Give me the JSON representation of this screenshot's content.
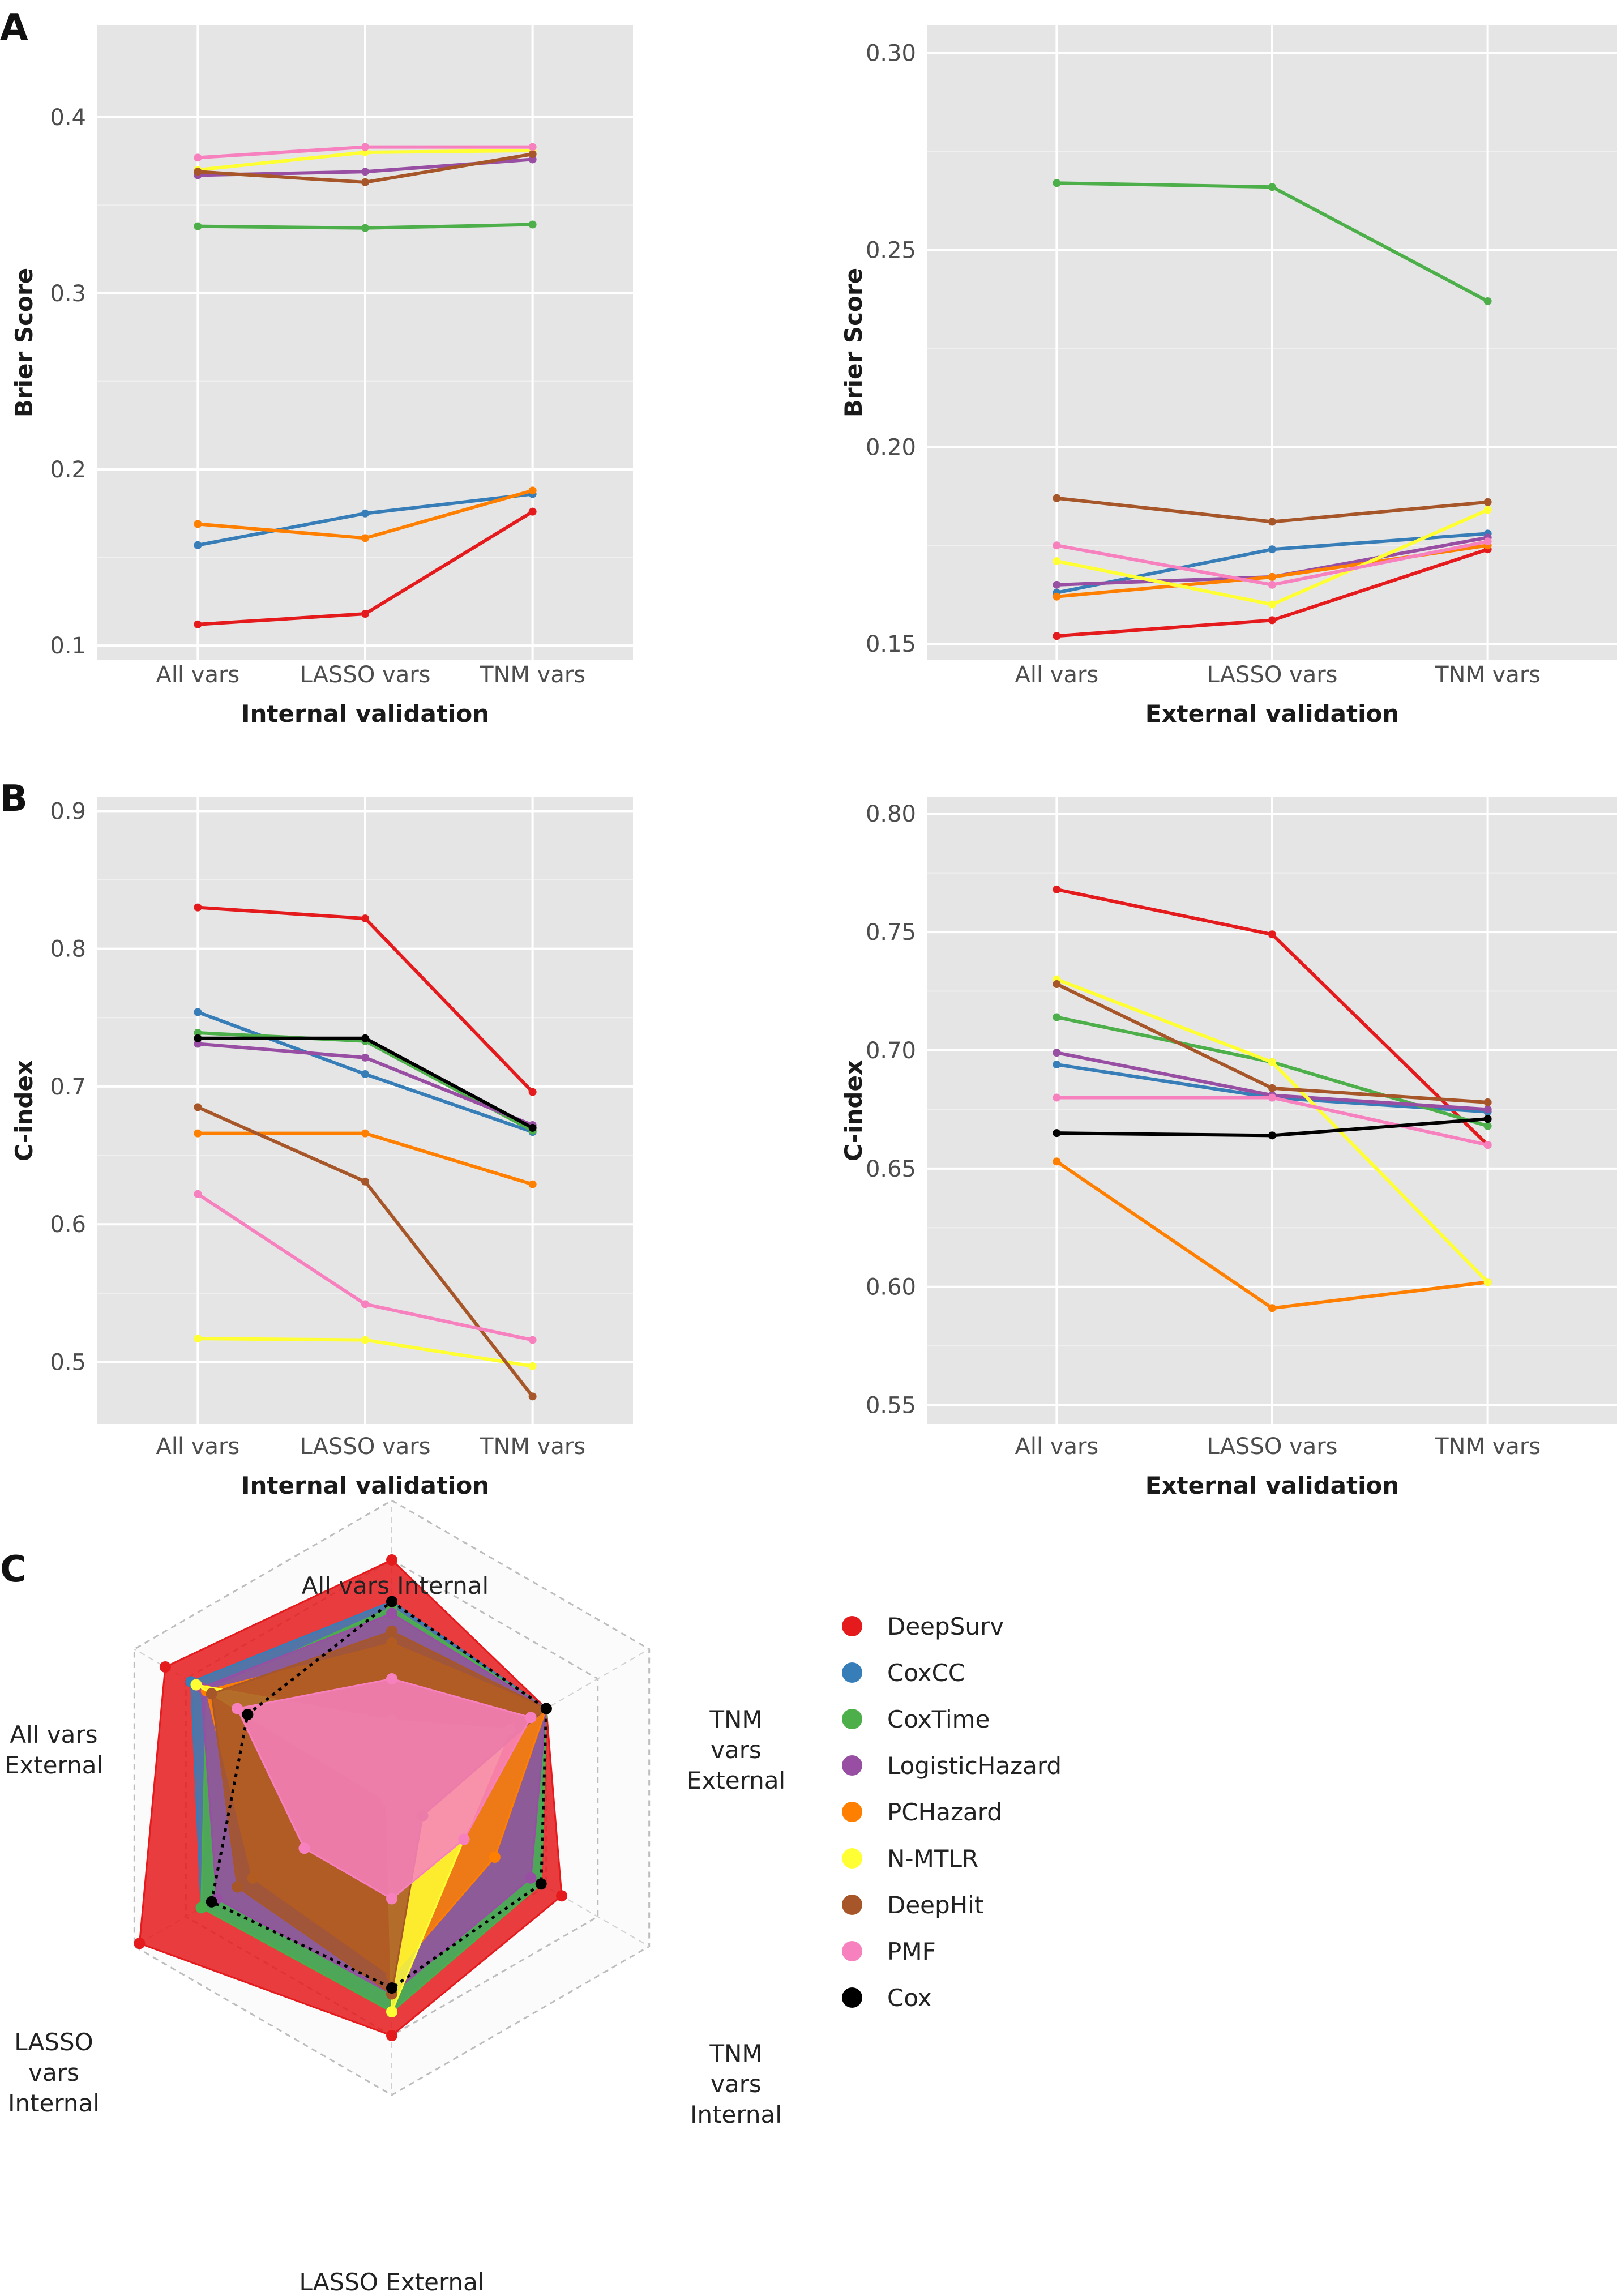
{
  "panels": {
    "A": "A",
    "B": "B",
    "C": "C"
  },
  "colors": {
    "panel_bg": "#e5e5e5",
    "grid_major": "#ffffff",
    "grid_minor": "#f0f0f0",
    "axis_text": "#4d4d4d",
    "title_text": "#1a1a1a"
  },
  "series_colors": {
    "DeepSurv": "#e41a1c",
    "CoxCC": "#377eb8",
    "CoxTime": "#4daf4a",
    "LogisticHazard": "#984ea3",
    "PCHazard": "#ff7f00",
    "N-MTLR": "#ffff33",
    "DeepHit": "#a65628",
    "PMF": "#f781bf",
    "Cox": "#000000"
  },
  "chart_data": [
    {
      "type": "line",
      "panel": "A",
      "xlabel": "Internal validation",
      "ylabel": "Brier Score",
      "categories": [
        "All vars",
        "LASSO vars",
        "TNM vars"
      ],
      "ylim": [
        0.092,
        0.452
      ],
      "yticks": [
        0.1,
        0.2,
        0.3,
        0.4
      ],
      "ytick_labels": [
        "0.1",
        "0.2",
        "0.3",
        "0.4"
      ],
      "grid": true,
      "series": [
        {
          "name": "DeepSurv",
          "values": [
            0.112,
            0.118,
            0.176
          ]
        },
        {
          "name": "CoxCC",
          "values": [
            0.157,
            0.175,
            0.186
          ]
        },
        {
          "name": "CoxTime",
          "values": [
            0.338,
            0.337,
            0.339
          ]
        },
        {
          "name": "LogisticHazard",
          "values": [
            0.367,
            0.369,
            0.376
          ]
        },
        {
          "name": "PCHazard",
          "values": [
            0.169,
            0.161,
            0.188
          ]
        },
        {
          "name": "N-MTLR",
          "values": [
            0.37,
            0.38,
            0.381
          ]
        },
        {
          "name": "DeepHit",
          "values": [
            0.369,
            0.363,
            0.379
          ]
        },
        {
          "name": "PMF",
          "values": [
            0.377,
            0.383,
            0.383
          ]
        }
      ]
    },
    {
      "type": "line",
      "panel": "A",
      "xlabel": "External validation",
      "ylabel": "Brier Score",
      "categories": [
        "All vars",
        "LASSO vars",
        "TNM vars"
      ],
      "ylim": [
        0.146,
        0.307
      ],
      "yticks": [
        0.15,
        0.2,
        0.25,
        0.3
      ],
      "ytick_labels": [
        "0.15",
        "0.20",
        "0.25",
        "0.30"
      ],
      "grid": true,
      "series": [
        {
          "name": "DeepSurv",
          "values": [
            0.152,
            0.156,
            0.174
          ]
        },
        {
          "name": "CoxCC",
          "values": [
            0.163,
            0.174,
            0.178
          ]
        },
        {
          "name": "CoxTime",
          "values": [
            0.267,
            0.266,
            0.237
          ]
        },
        {
          "name": "LogisticHazard",
          "values": [
            0.165,
            0.167,
            0.177
          ]
        },
        {
          "name": "PCHazard",
          "values": [
            0.162,
            0.167,
            0.175
          ]
        },
        {
          "name": "N-MTLR",
          "values": [
            0.171,
            0.16,
            0.184
          ]
        },
        {
          "name": "DeepHit",
          "values": [
            0.187,
            0.181,
            0.186
          ]
        },
        {
          "name": "PMF",
          "values": [
            0.175,
            0.165,
            0.176
          ]
        }
      ]
    },
    {
      "type": "line",
      "panel": "B",
      "xlabel": "Internal validation",
      "ylabel": "C-index",
      "categories": [
        "All vars",
        "LASSO vars",
        "TNM vars"
      ],
      "ylim": [
        0.455,
        0.91
      ],
      "yticks": [
        0.5,
        0.6,
        0.7,
        0.8,
        0.9
      ],
      "ytick_labels": [
        "0.5",
        "0.6",
        "0.7",
        "0.8",
        "0.9"
      ],
      "grid": true,
      "series": [
        {
          "name": "DeepSurv",
          "values": [
            0.83,
            0.822,
            0.696
          ]
        },
        {
          "name": "CoxCC",
          "values": [
            0.754,
            0.709,
            0.667
          ]
        },
        {
          "name": "CoxTime",
          "values": [
            0.739,
            0.733,
            0.668
          ]
        },
        {
          "name": "LogisticHazard",
          "values": [
            0.731,
            0.721,
            0.672
          ]
        },
        {
          "name": "PCHazard",
          "values": [
            0.666,
            0.666,
            0.629
          ]
        },
        {
          "name": "N-MTLR",
          "values": [
            0.517,
            0.516,
            0.497
          ]
        },
        {
          "name": "DeepHit",
          "values": [
            0.685,
            0.631,
            0.475
          ]
        },
        {
          "name": "PMF",
          "values": [
            0.622,
            0.542,
            0.516
          ]
        },
        {
          "name": "Cox",
          "values": [
            0.735,
            0.735,
            0.67
          ]
        }
      ]
    },
    {
      "type": "line",
      "panel": "B",
      "xlabel": "External validation",
      "ylabel": "C-index",
      "categories": [
        "All vars",
        "LASSO vars",
        "TNM vars"
      ],
      "ylim": [
        0.542,
        0.807
      ],
      "yticks": [
        0.55,
        0.6,
        0.65,
        0.7,
        0.75,
        0.8
      ],
      "ytick_labels": [
        "0.55",
        "0.60",
        "0.65",
        "0.70",
        "0.75",
        "0.80"
      ],
      "grid": true,
      "series": [
        {
          "name": "DeepSurv",
          "values": [
            0.768,
            0.749,
            0.66
          ]
        },
        {
          "name": "CoxCC",
          "values": [
            0.694,
            0.68,
            0.674
          ]
        },
        {
          "name": "CoxTime",
          "values": [
            0.714,
            0.695,
            0.668
          ]
        },
        {
          "name": "LogisticHazard",
          "values": [
            0.699,
            0.681,
            0.675
          ]
        },
        {
          "name": "PCHazard",
          "values": [
            0.653,
            0.591,
            0.602
          ]
        },
        {
          "name": "N-MTLR",
          "values": [
            0.73,
            0.695,
            0.602
          ]
        },
        {
          "name": "DeepHit",
          "values": [
            0.728,
            0.684,
            0.678
          ]
        },
        {
          "name": "PMF",
          "values": [
            0.68,
            0.68,
            0.66
          ]
        },
        {
          "name": "Cox",
          "values": [
            0.665,
            0.664,
            0.671
          ]
        }
      ]
    },
    {
      "type": "radar",
      "panel": "C",
      "axes": [
        {
          "label": "All vars Internal",
          "lines": [
            "All vars Internal"
          ]
        },
        {
          "label": "TNM vars External",
          "lines": [
            "TNM",
            "vars",
            "External"
          ]
        },
        {
          "label": "TNM vars Internal",
          "lines": [
            "TNM",
            "vars",
            "Internal"
          ]
        },
        {
          "label": "LASSO External",
          "lines": [
            "LASSO External"
          ]
        },
        {
          "label": "LASSO vars Internal",
          "lines": [
            "LASSO",
            "vars",
            "Internal"
          ]
        },
        {
          "label": "All vars External",
          "lines": [
            "All vars",
            "External"
          ]
        }
      ],
      "rlim": [
        0,
        1
      ],
      "grid_levels": 5,
      "legend_position": "right",
      "legend": [
        "DeepSurv",
        "CoxCC",
        "CoxTime",
        "LogisticHazard",
        "PCHazard",
        "N-MTLR",
        "DeepHit",
        "PMF",
        "Cox"
      ],
      "series": [
        {
          "name": "DeepSurv",
          "values": [
            0.8,
            0.6,
            0.66,
            0.8,
            0.98,
            0.88
          ],
          "filled": true
        },
        {
          "name": "CoxCC",
          "values": [
            0.66,
            0.6,
            0.58,
            0.72,
            0.74,
            0.78
          ],
          "filled": true
        },
        {
          "name": "CoxTime",
          "values": [
            0.64,
            0.6,
            0.58,
            0.72,
            0.74,
            0.72
          ],
          "filled": true
        },
        {
          "name": "LogisticHazard",
          "values": [
            0.62,
            0.6,
            0.54,
            0.66,
            0.68,
            0.74
          ],
          "filled": true
        },
        {
          "name": "PCHazard",
          "values": [
            0.52,
            0.6,
            0.4,
            0.6,
            0.54,
            0.72
          ],
          "filled": true
        },
        {
          "name": "N-MTLR",
          "values": [
            0.26,
            0.46,
            0.28,
            0.72,
            0.02,
            0.76
          ],
          "filled": true
        },
        {
          "name": "DeepHit",
          "values": [
            0.56,
            0.6,
            0.12,
            0.66,
            0.6,
            0.7
          ],
          "filled": true
        },
        {
          "name": "PMF",
          "values": [
            0.4,
            0.54,
            0.28,
            0.34,
            0.34,
            0.6
          ],
          "filled": true
        },
        {
          "name": "Cox",
          "values": [
            0.66,
            0.6,
            0.58,
            0.64,
            0.7,
            0.56
          ],
          "filled": false
        }
      ]
    }
  ]
}
